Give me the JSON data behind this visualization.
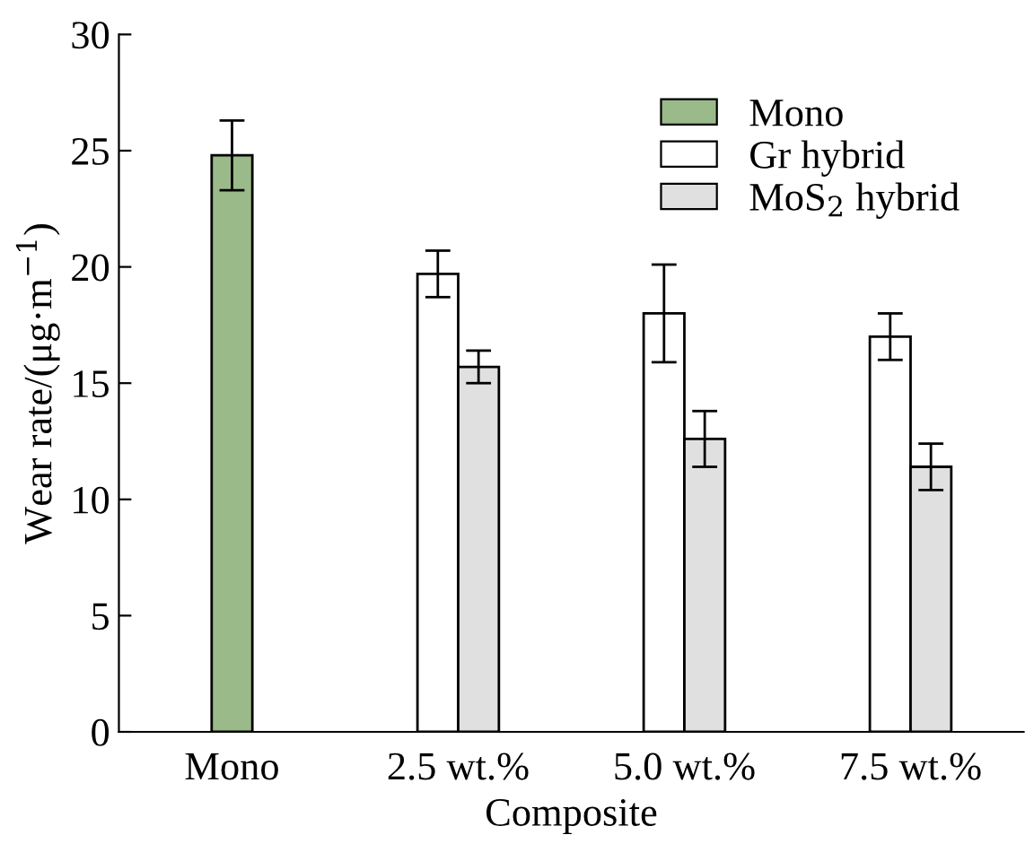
{
  "chart_data": {
    "type": "bar",
    "xlabel": "Composite",
    "ylabel": "Wear rate/(μg·m$^{−1}$)",
    "categories": [
      "Mono",
      "2.5 wt.%",
      "5.0 wt.%",
      "7.5 wt.%"
    ],
    "series": [
      {
        "name": "Mono",
        "color": "#9aba8a",
        "values": [
          24.8,
          null,
          null,
          null
        ],
        "errors": [
          1.5,
          null,
          null,
          null
        ]
      },
      {
        "name": "Gr hybrid",
        "color": "#ffffff",
        "values": [
          null,
          19.7,
          18.0,
          17.0
        ],
        "errors": [
          null,
          1.0,
          2.1,
          1.0
        ]
      },
      {
        "name": "MoS$_{2}$ hybrid",
        "color": "#e0e0e0",
        "values": [
          null,
          15.7,
          12.6,
          11.4
        ],
        "errors": [
          null,
          0.7,
          1.2,
          1.0
        ]
      }
    ],
    "ylim": [
      0,
      30
    ],
    "yticks": [
      0,
      5,
      10,
      15,
      20,
      25,
      30
    ],
    "grid": false,
    "legend": "top right"
  }
}
